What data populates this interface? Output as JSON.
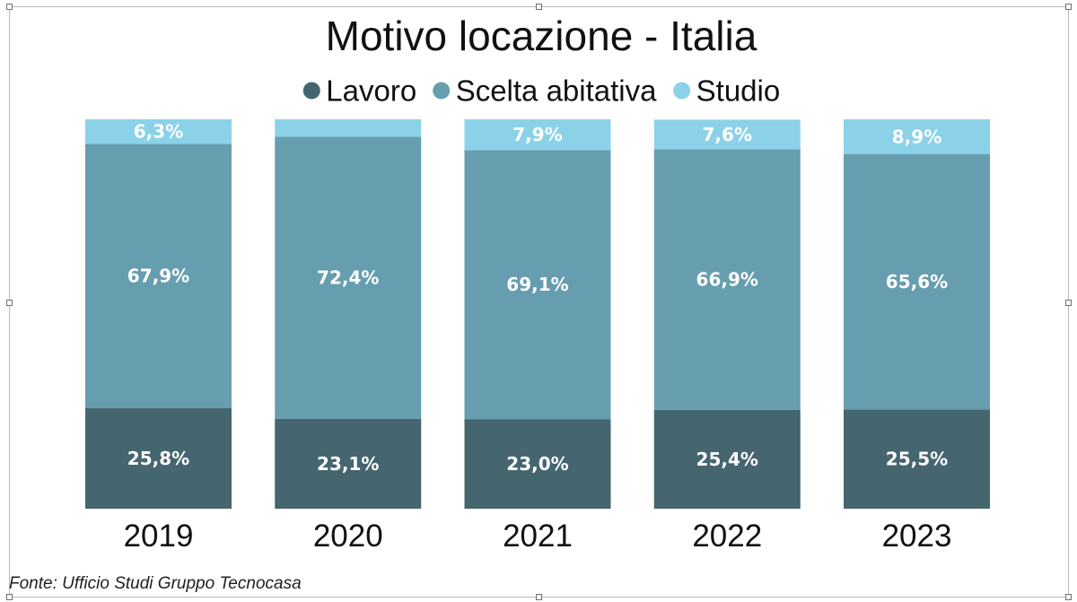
{
  "chart_data": {
    "type": "bar",
    "stacked": true,
    "title": "Motivo locazione - Italia",
    "categories": [
      "2019",
      "2020",
      "2021",
      "2022",
      "2023"
    ],
    "series": [
      {
        "name": "Lavoro",
        "color": "#45656f",
        "values": [
          25.8,
          23.1,
          23.0,
          25.4,
          25.5
        ],
        "labels": [
          "25,8%",
          "23,1%",
          "23,0%",
          "25,4%",
          "25,5%"
        ]
      },
      {
        "name": "Scelta abitativa",
        "color": "#679eaf",
        "values": [
          67.9,
          72.4,
          69.1,
          66.9,
          65.6
        ],
        "labels": [
          "67,9%",
          "72,4%",
          "69,1%",
          "66,9%",
          "65,6%"
        ]
      },
      {
        "name": "Studio",
        "color": "#8bd2e9",
        "values": [
          6.3,
          4.5,
          7.9,
          7.6,
          8.9
        ],
        "labels": [
          "6,3%",
          "",
          "7,9%",
          "7,6%",
          "8,9%"
        ]
      }
    ],
    "ylim": [
      0,
      100
    ],
    "legend": "top-center",
    "xlabel": "",
    "ylabel": ""
  },
  "source": "Fonte: Ufficio Studi Gruppo Tecnocasa"
}
